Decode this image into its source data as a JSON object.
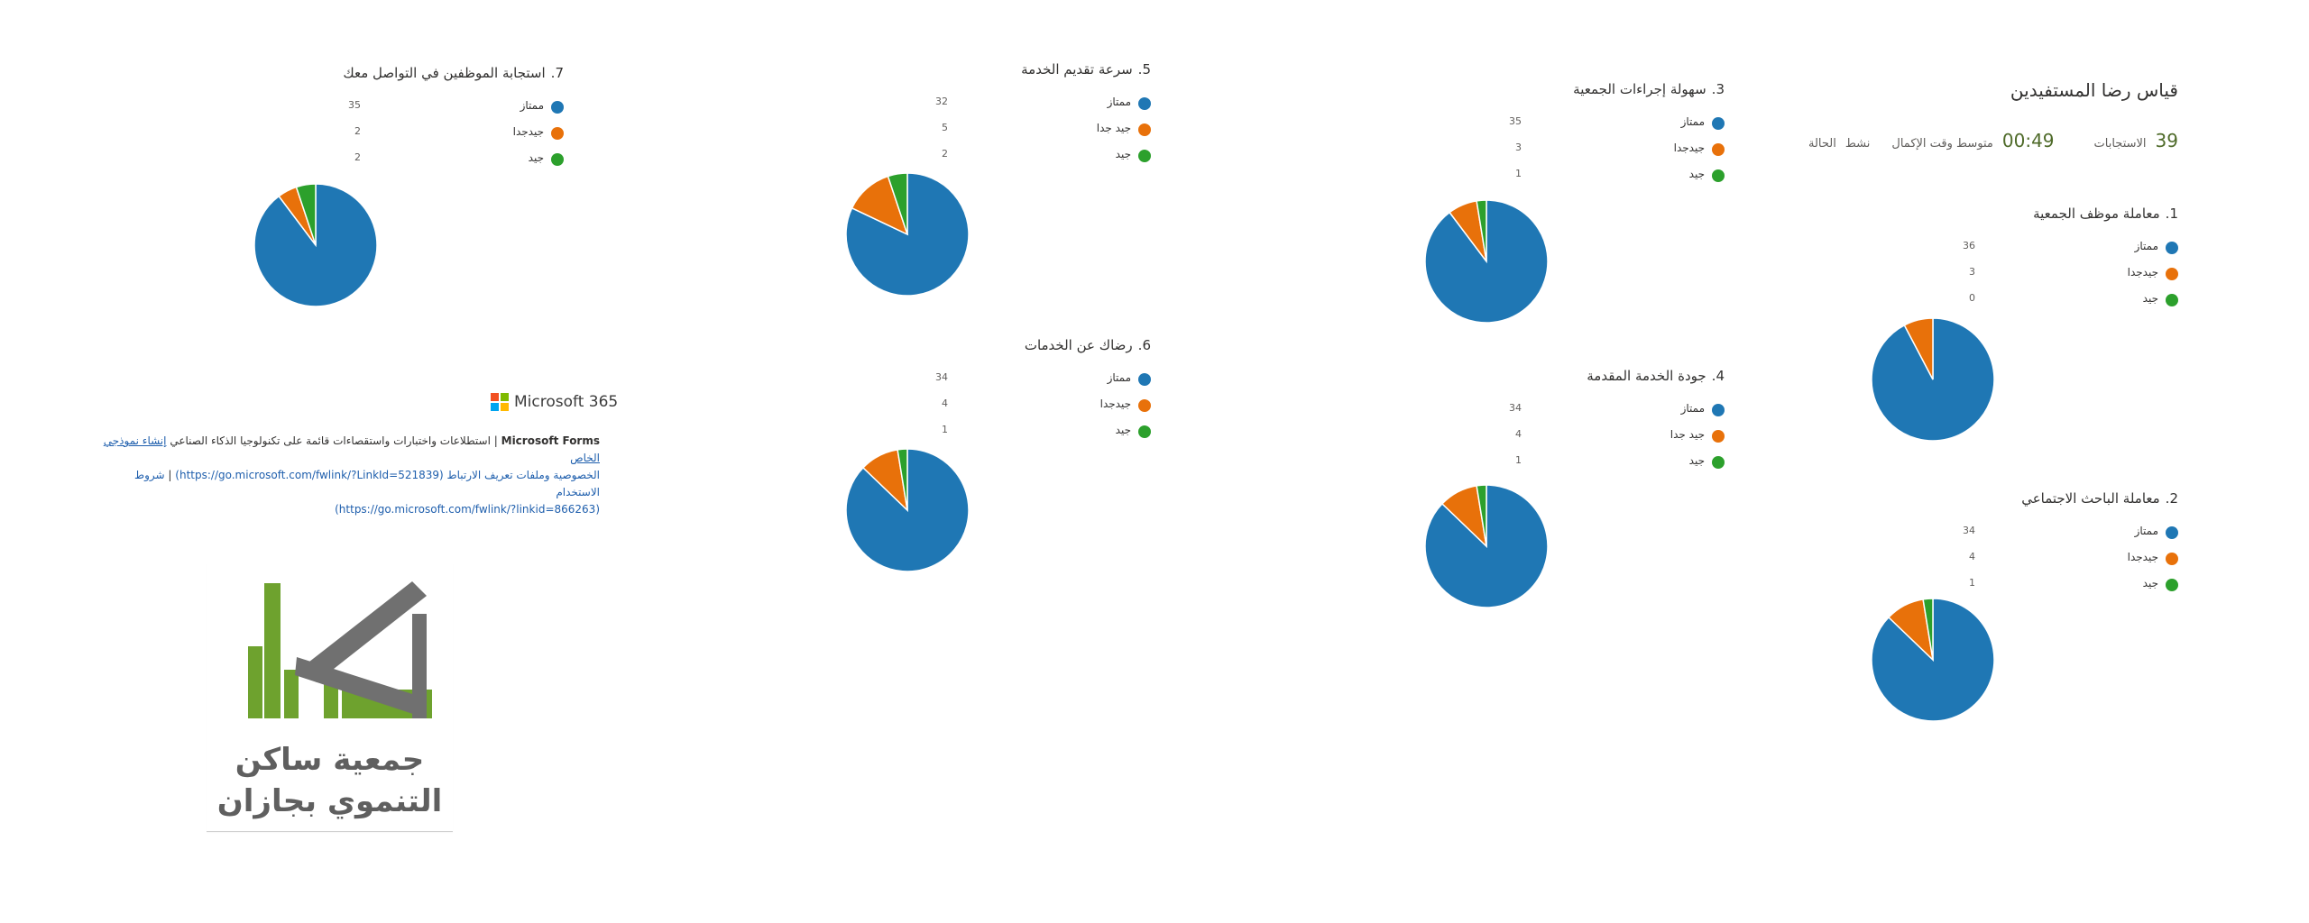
{
  "form": {
    "title": "قياس رضا المستفيدين",
    "responses_count": "39",
    "responses_label": "الاستجابات",
    "avg_time": "00:49",
    "avg_time_label": "متوسط وقت الإكمال",
    "status_value": "نشط",
    "status_label": "الحالة"
  },
  "questions": [
    {
      "num": "1.",
      "title": "معاملة موظف الجمعية",
      "legend": [
        {
          "label": "ممتاز",
          "count": "36"
        },
        {
          "label": "جيدجدا",
          "count": "3"
        },
        {
          "label": "جيد",
          "count": "0"
        }
      ]
    },
    {
      "num": "2.",
      "title": "معاملة الباحث الاجتماعي",
      "legend": [
        {
          "label": "ممتاز",
          "count": "34"
        },
        {
          "label": "جيدجدا",
          "count": "4"
        },
        {
          "label": "جيد",
          "count": "1"
        }
      ]
    },
    {
      "num": "3.",
      "title": "سهولة إجراءات الجمعية",
      "legend": [
        {
          "label": "ممتاز",
          "count": "35"
        },
        {
          "label": "جيدجدا",
          "count": "3"
        },
        {
          "label": "جيد",
          "count": "1"
        }
      ]
    },
    {
      "num": "4.",
      "title": "جودة الخدمة المقدمة",
      "legend": [
        {
          "label": "ممتاز",
          "count": "34"
        },
        {
          "label": "جيد جدا",
          "count": "4"
        },
        {
          "label": "جيد",
          "count": "1"
        }
      ]
    },
    {
      "num": "5.",
      "title": "سرعة تقديم الخدمة",
      "legend": [
        {
          "label": "ممتاز",
          "count": "32"
        },
        {
          "label": "جيد جدا",
          "count": "5"
        },
        {
          "label": "جيد",
          "count": "2"
        }
      ]
    },
    {
      "num": "6.",
      "title": "رضاك عن الخدمات",
      "legend": [
        {
          "label": "ممتاز",
          "count": "34"
        },
        {
          "label": "جيدجدا",
          "count": "4"
        },
        {
          "label": "جيد",
          "count": "1"
        }
      ]
    },
    {
      "num": "7.",
      "title": "استجابة الموظفين في التواصل معك",
      "legend": [
        {
          "label": "ممتاز",
          "count": "35"
        },
        {
          "label": "جيدجدا",
          "count": "2"
        },
        {
          "label": "جيد",
          "count": "2"
        }
      ]
    }
  ],
  "chart_data": [
    {
      "type": "pie",
      "title": "معاملة موظف الجمعية",
      "categories": [
        "ممتاز",
        "جيدجدا",
        "جيد"
      ],
      "values": [
        36,
        3,
        0
      ],
      "colors": [
        "#1f77b4",
        "#e8710a",
        "#2ca02c"
      ]
    },
    {
      "type": "pie",
      "title": "معاملة الباحث الاجتماعي",
      "categories": [
        "ممتاز",
        "جيدجدا",
        "جيد"
      ],
      "values": [
        34,
        4,
        1
      ],
      "colors": [
        "#1f77b4",
        "#e8710a",
        "#2ca02c"
      ]
    },
    {
      "type": "pie",
      "title": "سهولة إجراءات الجمعية",
      "categories": [
        "ممتاز",
        "جيدجدا",
        "جيد"
      ],
      "values": [
        35,
        3,
        1
      ],
      "colors": [
        "#1f77b4",
        "#e8710a",
        "#2ca02c"
      ]
    },
    {
      "type": "pie",
      "title": "جودة الخدمة المقدمة",
      "categories": [
        "ممتاز",
        "جيد جدا",
        "جيد"
      ],
      "values": [
        34,
        4,
        1
      ],
      "colors": [
        "#1f77b4",
        "#e8710a",
        "#2ca02c"
      ]
    },
    {
      "type": "pie",
      "title": "سرعة تقديم الخدمة",
      "categories": [
        "ممتاز",
        "جيد جدا",
        "جيد"
      ],
      "values": [
        32,
        5,
        2
      ],
      "colors": [
        "#1f77b4",
        "#e8710a",
        "#2ca02c"
      ]
    },
    {
      "type": "pie",
      "title": "رضاك عن الخدمات",
      "categories": [
        "ممتاز",
        "جيدجدا",
        "جيد"
      ],
      "values": [
        34,
        4,
        1
      ],
      "colors": [
        "#1f77b4",
        "#e8710a",
        "#2ca02c"
      ]
    },
    {
      "type": "pie",
      "title": "استجابة الموظفين في التواصل معك",
      "categories": [
        "ممتاز",
        "جيدجدا",
        "جيد"
      ],
      "values": [
        35,
        2,
        2
      ],
      "colors": [
        "#1f77b4",
        "#e8710a",
        "#2ca02c"
      ]
    }
  ],
  "footer": {
    "ms_brand": "Microsoft 365",
    "forms_name": "Microsoft Forms",
    "description": "| استطلاعات واختبارات واستقصاءات قائمة على تكنولوجيا الذكاء الصناعي",
    "create_link": "إنشاء نموذجي الخاص",
    "privacy_link": "الخصوصية وملفات تعريف الارتباط (https://go.microsoft.com/fwlink/?LinkId=521839)",
    "separator": "|",
    "terms_link": "شروط الاستخدام",
    "terms_url": "(https://go.microsoft.com/fwlink/?linkid=866263)"
  },
  "logo": {
    "name_line1": "جمعية ساكن",
    "name_line2": "التنموي بجازان"
  },
  "colors": {
    "excellent": "#1f77b4",
    "very_good": "#e8710a",
    "good": "#2ca02c",
    "logo_green": "#6ea22e",
    "logo_gray": "#707070"
  }
}
